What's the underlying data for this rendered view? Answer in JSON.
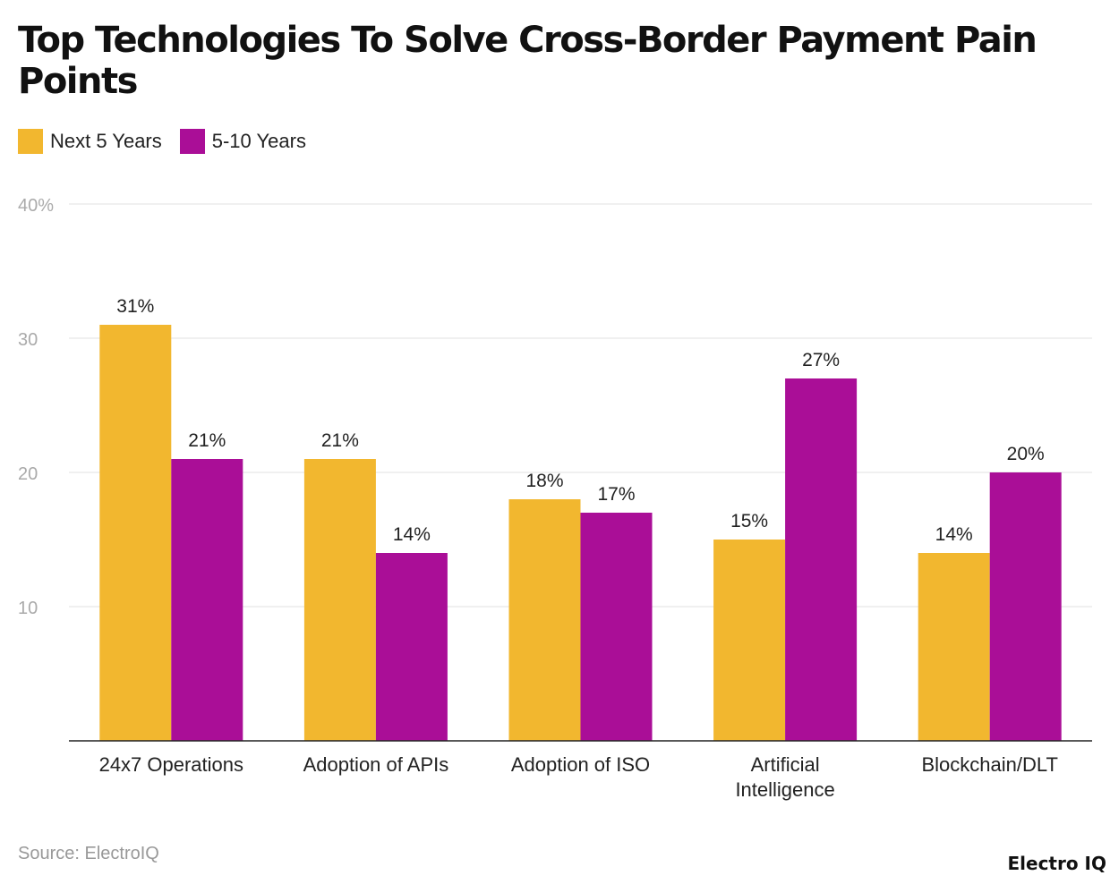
{
  "chart_data": {
    "type": "bar",
    "title": "Top Technologies To Solve Cross-Border Payment Pain Points",
    "categories": [
      "24x7 Operations",
      "Adoption of APIs",
      "Adoption of ISO",
      "Artificial Intelligence",
      "Blockchain/DLT"
    ],
    "series": [
      {
        "name": "Next 5 Years",
        "values": [
          31,
          21,
          18,
          15,
          14
        ],
        "color": "#F2B72F"
      },
      {
        "name": "5-10 Years",
        "values": [
          21,
          14,
          17,
          27,
          20
        ],
        "color": "#AA0E97"
      }
    ],
    "ylim": [
      0,
      40
    ],
    "yticks": [
      10,
      20,
      30,
      40
    ],
    "ytick_labels": [
      "10",
      "20",
      "30",
      "40%"
    ],
    "data_label_suffix": "%",
    "grid": true,
    "legend_position": "top-left",
    "xlabel": "",
    "ylabel": ""
  },
  "source": "Source: ElectroIQ",
  "logo": "Electro IQ"
}
